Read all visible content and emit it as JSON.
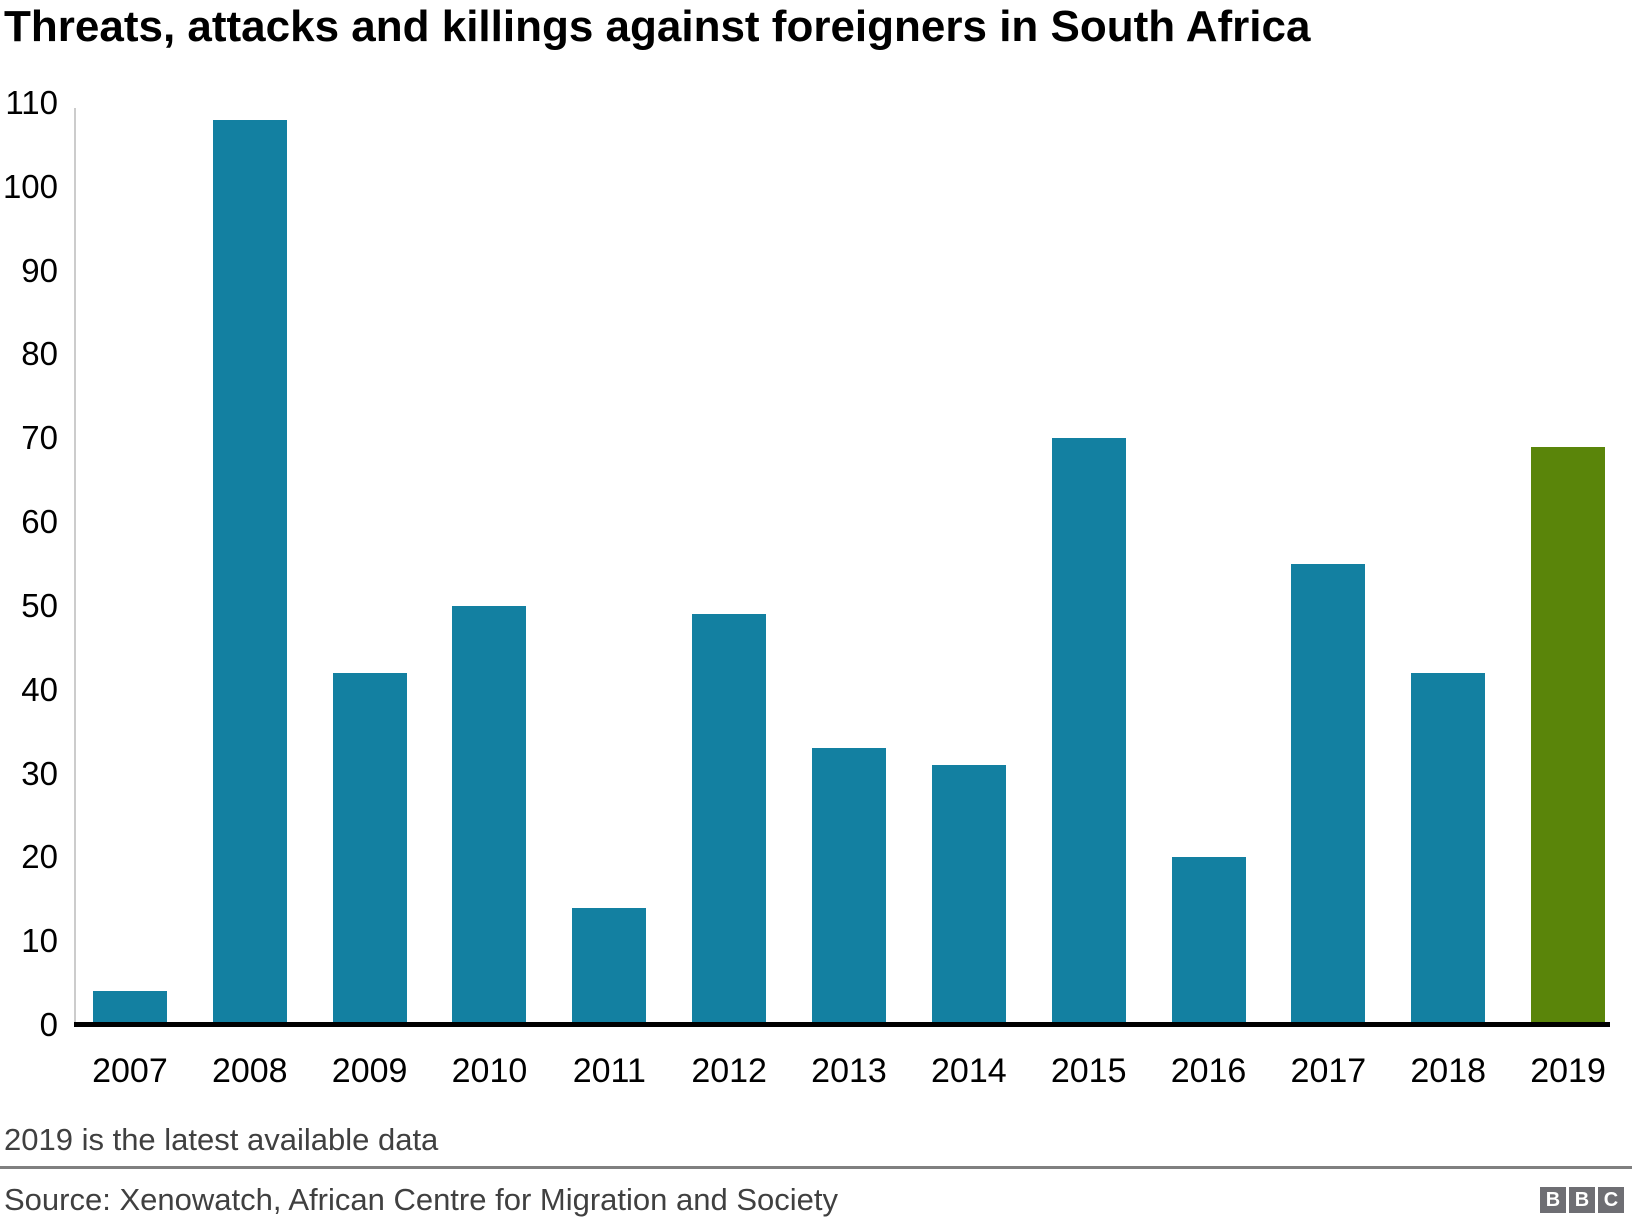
{
  "title": "Threats, attacks and killings against foreigners in South Africa",
  "footnote": "2019 is the latest available data",
  "source": "Source: Xenowatch, African Centre for Migration and Society",
  "logo": {
    "letters": [
      "B",
      "B",
      "C"
    ]
  },
  "colors": {
    "bar": "#1380A1",
    "highlight_bar": "#5A850A",
    "axis_line": "#cccccc",
    "baseline": "#000000",
    "footer_text": "#404040",
    "divider": "#808080",
    "logo_background": "#6e6e73"
  },
  "chart_data": {
    "type": "bar",
    "title": "Threats, attacks and killings against foreigners in South Africa",
    "categories": [
      "2007",
      "2008",
      "2009",
      "2010",
      "2011",
      "2012",
      "2013",
      "2014",
      "2015",
      "2016",
      "2017",
      "2018",
      "2019"
    ],
    "values": [
      4,
      108,
      42,
      50,
      14,
      49,
      33,
      31,
      70,
      20,
      55,
      42,
      69
    ],
    "highlight_category": "2019",
    "highlight_note": "2019 bar shown in green; all other bars teal",
    "xlabel": "",
    "ylabel": "",
    "ylim": [
      0,
      110
    ],
    "yticks": [
      0,
      10,
      20,
      30,
      40,
      50,
      60,
      70,
      80,
      90,
      100,
      110
    ],
    "grid": false,
    "legend": false,
    "annotation": "2019 is the latest available data"
  }
}
